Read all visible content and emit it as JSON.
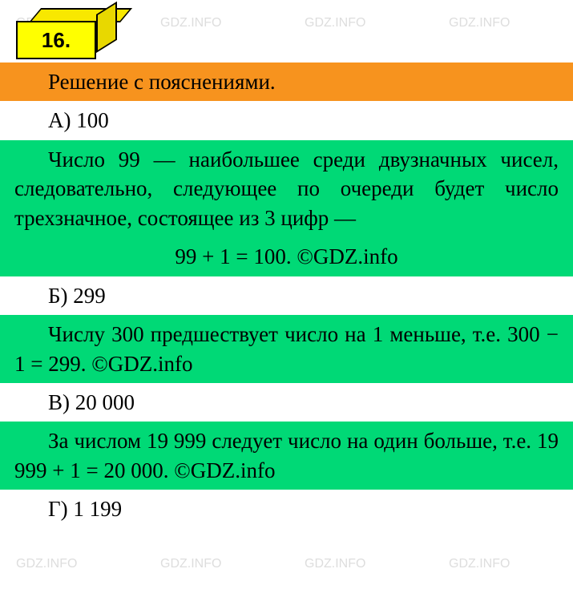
{
  "badge": {
    "number": "16."
  },
  "header": {
    "title": "Решение с пояснениями."
  },
  "items": {
    "a": {
      "label": "А) 100",
      "explain": "Число 99 — наибольшее среди дву­значных чисел, следовательно, следую­щее по очереди будет число трехзначное, состоящее из 3 цифр —",
      "formula": "99 + 1 = 100. ©GDZ.info"
    },
    "b": {
      "label": "Б) 299",
      "explain": "Числу 300 предшествует число на 1 меньше, т.е. 300 − 1 = 299. ©GDZ.info"
    },
    "v": {
      "label": "В) 20 000",
      "explain": "За числом 19 999 следует число на один больше, т.е. 19 999 + 1 = 20 000. ©GDZ.info"
    },
    "g": {
      "label": "Г) 1 199"
    }
  },
  "watermark_text": "GDZ.INFO",
  "big_watermark": "GDZ.INFO",
  "colors": {
    "orange": "#f7931e",
    "green": "#00d976",
    "yellow": "#ffff00",
    "white": "#ffffff"
  }
}
